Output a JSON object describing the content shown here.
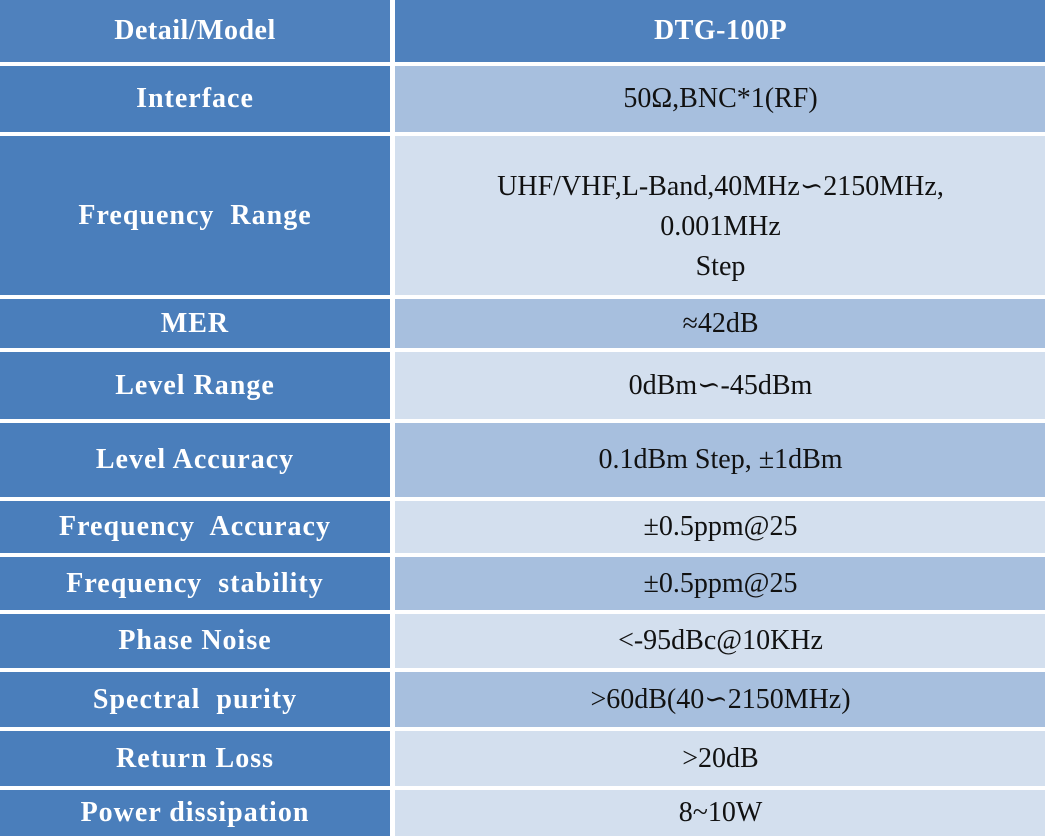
{
  "header": {
    "detail_label": "Detail/Model",
    "model": "DTG-100P"
  },
  "colors": {
    "header": "#4f81bd",
    "label_column": "#4a7ebb",
    "row_dark": "#a7bfde",
    "row_light": "#d3dfee"
  },
  "rows": [
    {
      "label": "Interface",
      "value": "50Ω,BNC*1(RF)"
    },
    {
      "label": "Frequency  Range",
      "value": "UHF/VHF,L-Band,40MHz∽2150MHz,\n0.001MHz\nStep"
    },
    {
      "label": "MER",
      "value": "≈42dB"
    },
    {
      "label": "Level Range",
      "value": "0dBm∽-45dBm"
    },
    {
      "label": "Level Accuracy",
      "value": "0.1dBm Step, ±1dBm"
    },
    {
      "label": "Frequency  Accuracy",
      "value": "±0.5ppm@25"
    },
    {
      "label": "Frequency  stability",
      "value": "±0.5ppm@25"
    },
    {
      "label": "Phase Noise",
      "value": "<-95dBc@10KHz"
    },
    {
      "label": "Spectral  purity",
      "value": ">60dB(40∽2150MHz)"
    },
    {
      "label": "Return Loss",
      "value": ">20dB"
    },
    {
      "label": "Power dissipation",
      "value": "8~10W"
    }
  ]
}
